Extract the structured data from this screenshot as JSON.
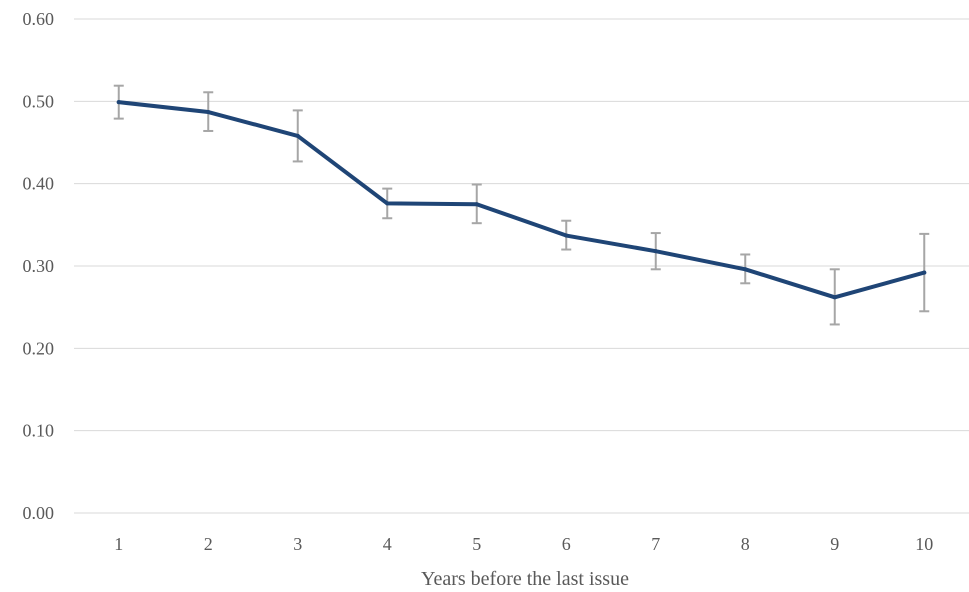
{
  "chart_data": {
    "type": "line",
    "title": "",
    "xlabel": "Years before the last issue",
    "ylabel": "",
    "categories": [
      "1",
      "2",
      "3",
      "4",
      "5",
      "6",
      "7",
      "8",
      "9",
      "10"
    ],
    "ylim": [
      0,
      0.6
    ],
    "yticks": [
      "0.00",
      "0.10",
      "0.20",
      "0.30",
      "0.40",
      "0.50",
      "0.60"
    ],
    "grid": true,
    "legend": "none",
    "series": [
      {
        "values": [
          0.499,
          0.487,
          0.458,
          0.376,
          0.375,
          0.337,
          0.318,
          0.296,
          0.262,
          0.292
        ],
        "error_low": [
          0.479,
          0.464,
          0.427,
          0.358,
          0.352,
          0.32,
          0.296,
          0.279,
          0.229,
          0.245
        ],
        "error_high": [
          0.519,
          0.511,
          0.489,
          0.394,
          0.399,
          0.355,
          0.34,
          0.314,
          0.296,
          0.339
        ],
        "color": "#1f4576"
      }
    ],
    "error_bar_color": "#a6a6a6",
    "grid_color": "#d9d9d9"
  }
}
